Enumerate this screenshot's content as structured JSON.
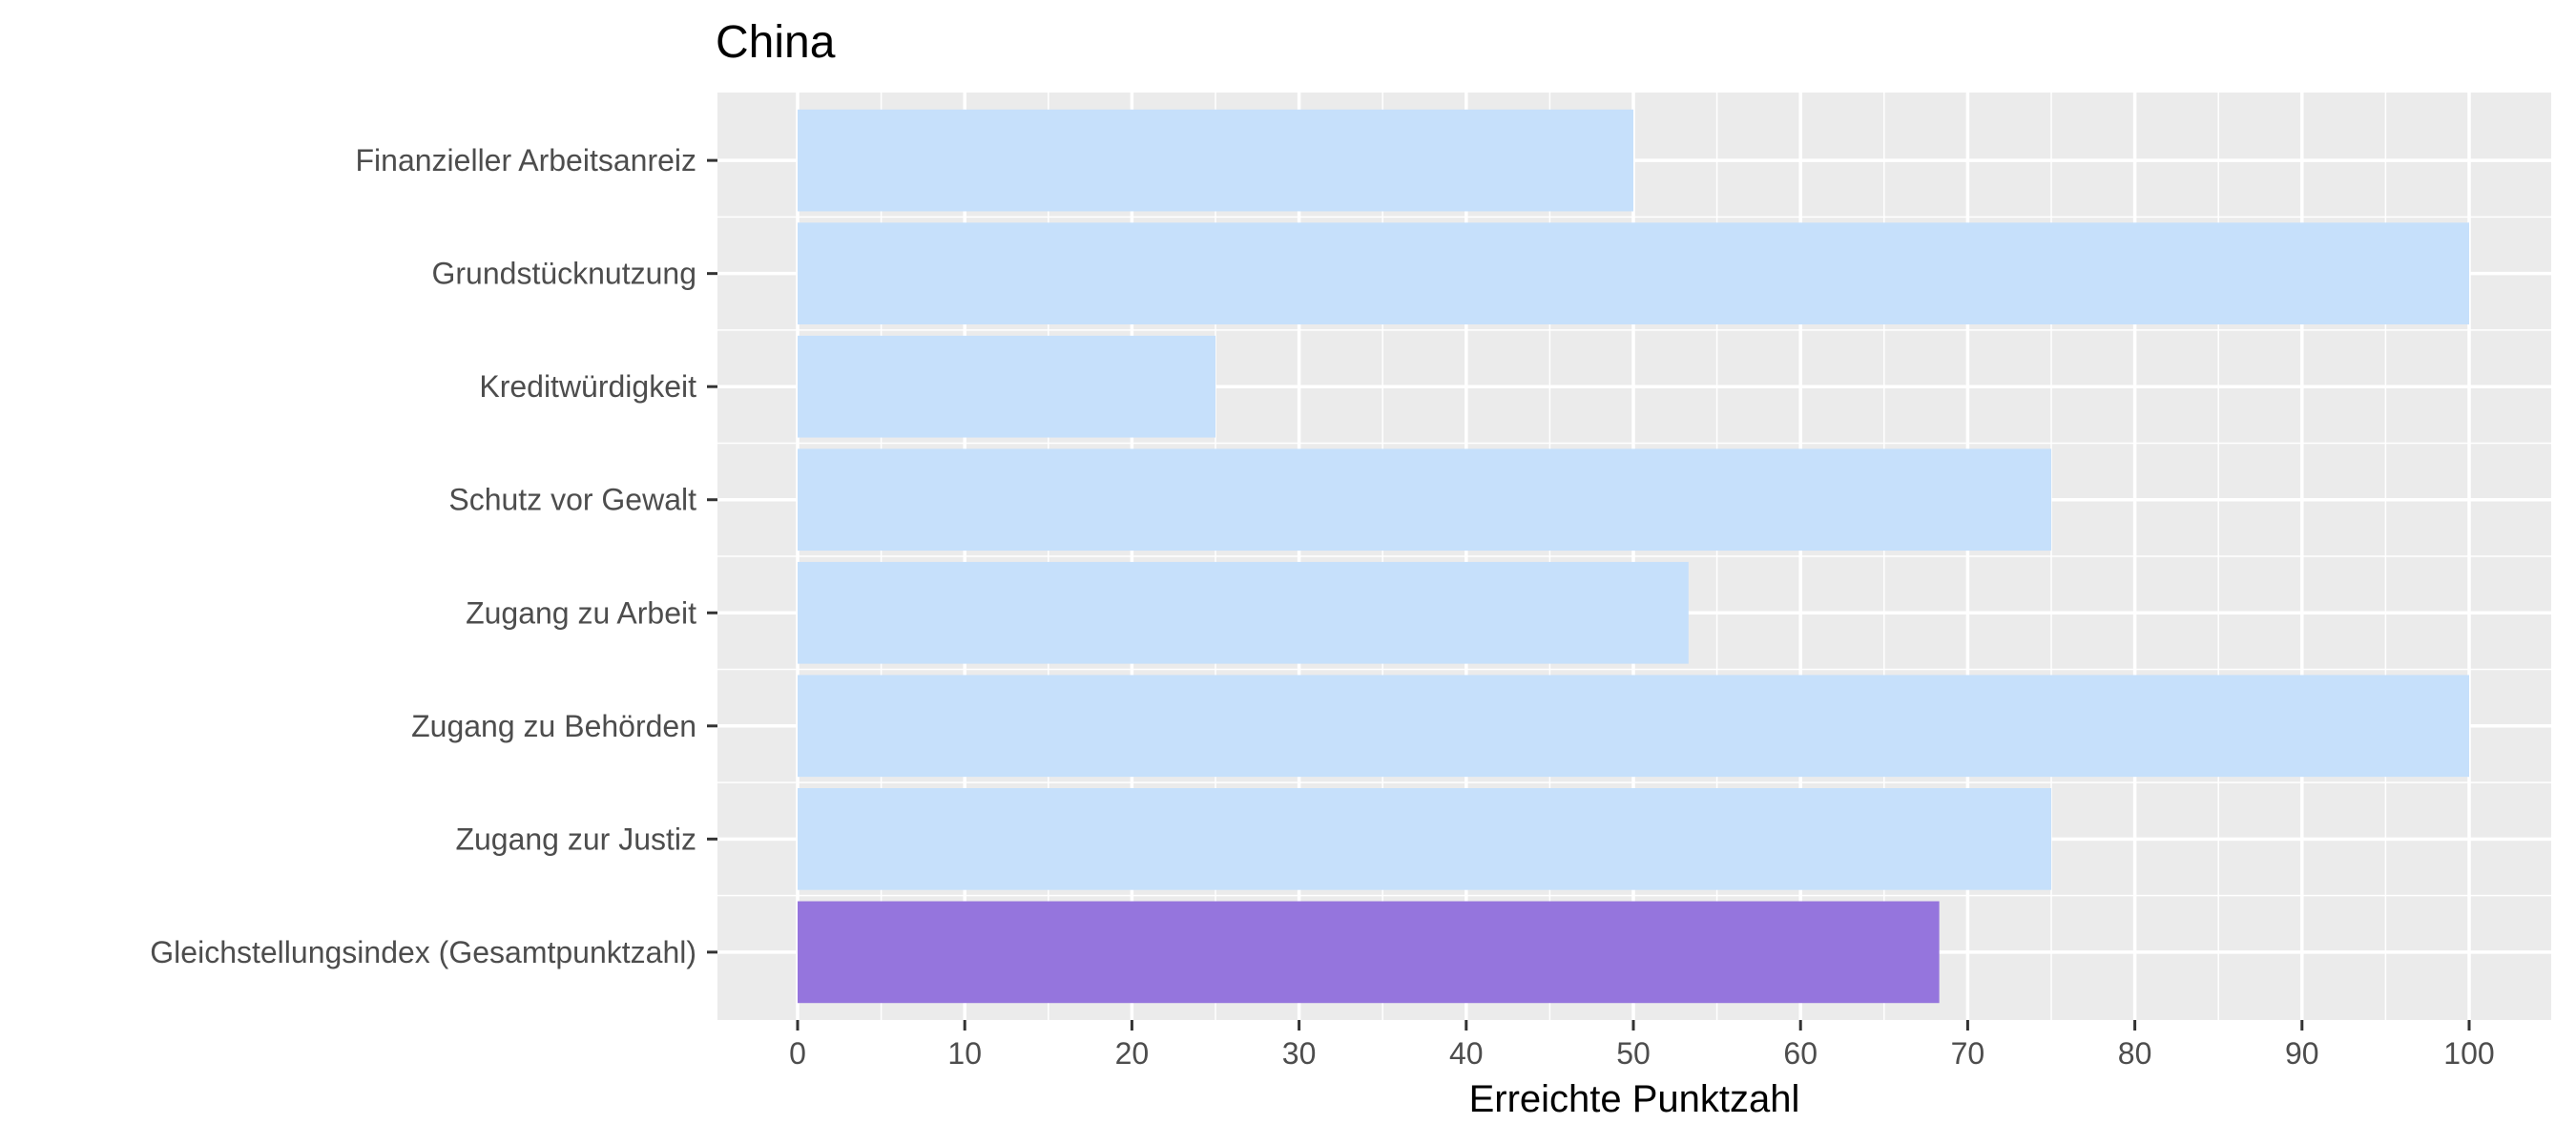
{
  "chart_data": {
    "type": "bar",
    "orientation": "horizontal",
    "title": "China",
    "xlabel": "Erreichte Punktzahl",
    "ylabel": "",
    "xlim": [
      0,
      100
    ],
    "x_ticks": [
      0,
      10,
      20,
      30,
      40,
      50,
      60,
      70,
      80,
      90,
      100
    ],
    "grid": true,
    "legend": "none",
    "categories": [
      "Finanzieller Arbeitsanreiz",
      "Grundstücknutzung",
      "Kreditwürdigkeit",
      "Schutz vor Gewalt",
      "Zugang zu Arbeit",
      "Zugang zu Behörden",
      "Zugang zur Justiz",
      "Gleichstellungsindex (Gesamtpunktzahl)"
    ],
    "values": [
      50,
      100,
      25,
      75,
      53.3,
      100,
      75,
      68.3
    ],
    "colors": [
      "#c6e0fb",
      "#c6e0fb",
      "#c6e0fb",
      "#c6e0fb",
      "#c6e0fb",
      "#c6e0fb",
      "#c6e0fb",
      "#9575dd"
    ],
    "panel_background": "#ebebeb",
    "grid_color": "#ffffff"
  }
}
